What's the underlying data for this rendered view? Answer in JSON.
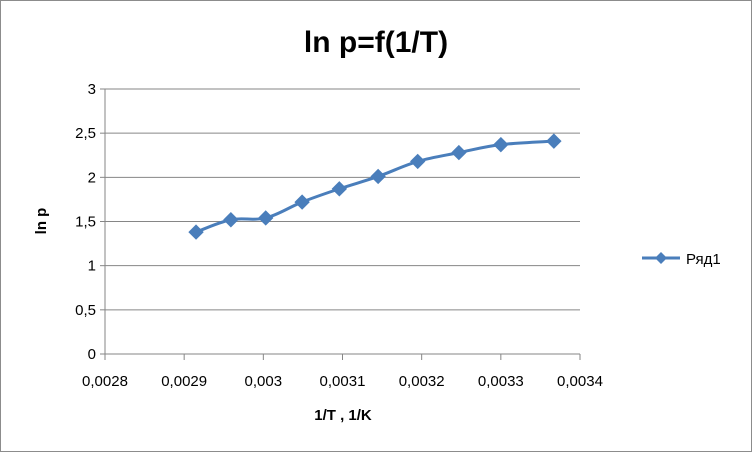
{
  "chart_data": {
    "type": "line",
    "title": "ln p=f(1/T)",
    "xlabel": "1/T ,  1/K",
    "ylabel": "ln p",
    "xlim": [
      0.0028,
      0.0034
    ],
    "ylim": [
      0,
      3
    ],
    "x_ticks": [
      "0,0028",
      "0,0029",
      "0,003",
      "0,0031",
      "0,0032",
      "0,0033",
      "0,0034"
    ],
    "y_ticks": [
      "0",
      "0,5",
      "1",
      "1,5",
      "2",
      "2,5",
      "3"
    ],
    "x_tick_values": [
      0.0028,
      0.0029,
      0.003,
      0.0031,
      0.0032,
      0.0033,
      0.0034
    ],
    "y_tick_values": [
      0,
      0.5,
      1,
      1.5,
      2,
      2.5,
      3
    ],
    "grid": "horizontal",
    "legend_position": "right",
    "series": [
      {
        "name": "Ряд1",
        "color": "#4a7ebb",
        "marker": "diamond",
        "x": [
          0.002915,
          0.002959,
          0.003003,
          0.003049,
          0.003096,
          0.003145,
          0.003195,
          0.003247,
          0.0033,
          0.003367
        ],
        "y": [
          1.38,
          1.52,
          1.54,
          1.72,
          1.87,
          2.01,
          2.18,
          2.28,
          2.37,
          2.41
        ]
      }
    ]
  }
}
